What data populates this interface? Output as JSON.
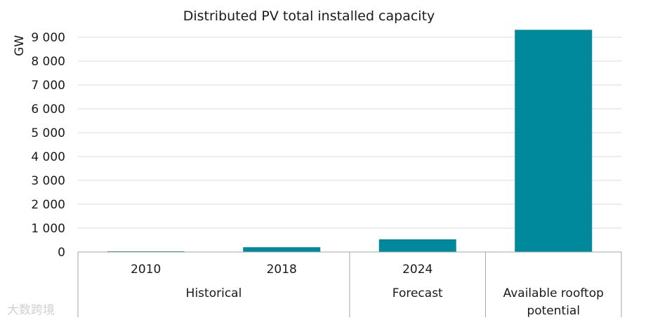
{
  "chart_data": {
    "type": "bar",
    "title": "Distributed PV total installed capacity",
    "ylabel": "GW",
    "xlabel": "",
    "ylim": [
      0,
      9000
    ],
    "yticks": [
      0,
      1000,
      2000,
      3000,
      4000,
      5000,
      6000,
      7000,
      8000,
      9000
    ],
    "ytick_labels": [
      "0",
      "1 000",
      "2 000",
      "3 000",
      "4 000",
      "5 000",
      "6 000",
      "7 000",
      "8 000",
      "9 000"
    ],
    "grid": true,
    "categories": [
      "2010",
      "2018",
      "2024",
      ""
    ],
    "values": [
      30,
      200,
      530,
      9310
    ],
    "groups": [
      {
        "label": "Historical",
        "span": 2
      },
      {
        "label": "Forecast",
        "span": 1
      },
      {
        "label": "Available rooftop potential",
        "span": 1
      }
    ],
    "bar_color": "#00889C"
  },
  "watermark": "大数跨境"
}
